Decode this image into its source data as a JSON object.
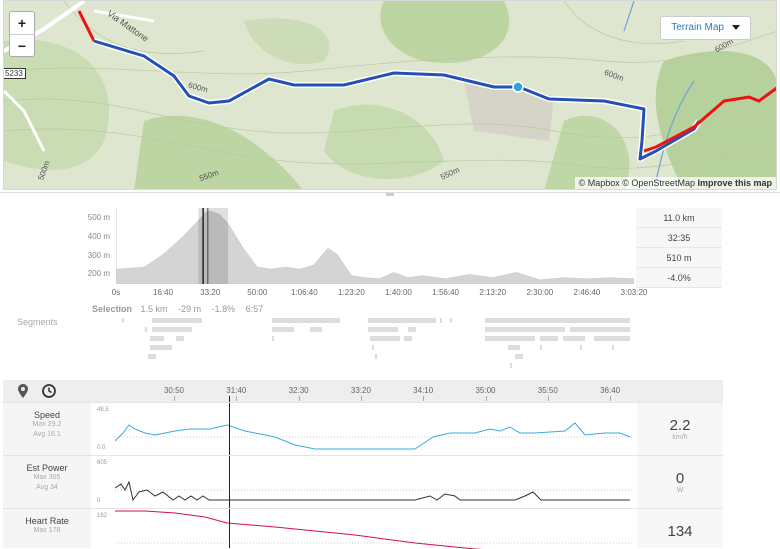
{
  "map": {
    "zoom_in": "+",
    "zoom_out": "−",
    "road_badge": "5233",
    "street_label": "Via Mattone",
    "contour_labels": [
      "600m",
      "600m",
      "550m",
      "550m",
      "500m",
      "600m"
    ],
    "terrain_button": "Terrain Map",
    "attribution_mapbox": "© Mapbox",
    "attribution_osm": "© OpenStreetMap",
    "attribution_improve": "Improve this map"
  },
  "elevation": {
    "y_labels": [
      "500 m",
      "400 m",
      "300 m",
      "200 m"
    ],
    "x_labels": [
      "0s",
      "16:40",
      "33:20",
      "50:00",
      "1:06:40",
      "1:23:20",
      "1:40:00",
      "1:56:40",
      "2:13:20",
      "2:30:00",
      "2:46:40",
      "3:03:20"
    ],
    "stats": [
      "11.0 km",
      "32:35",
      "510 m",
      "-4.0%"
    ],
    "selection_label": "Selection",
    "selection_values": [
      "1.5 km",
      "-29 m",
      "-1.8%",
      "6:57"
    ],
    "segments_label": "Segments"
  },
  "chart_data": {
    "type": "area",
    "xlabel": "",
    "ylabel": "",
    "x_ticks": [
      "0s",
      "16:40",
      "33:20",
      "50:00",
      "1:06:40",
      "1:23:20",
      "1:40:00",
      "1:56:40",
      "2:13:20",
      "2:30:00",
      "2:46:40",
      "3:03:20"
    ],
    "ylim": [
      160,
      520
    ],
    "x_seconds": [
      0,
      600,
      1000,
      1400,
      1700,
      1900,
      2000,
      2200,
      2400,
      2700,
      3000,
      3300,
      3600,
      3900,
      4200,
      4500,
      4700,
      5000,
      5300,
      5600,
      5900,
      6200,
      6500,
      7000,
      7500,
      8000,
      8500,
      9000,
      9500,
      10000,
      10500,
      11000
    ],
    "elevation_m": [
      230,
      240,
      300,
      380,
      450,
      500,
      505,
      490,
      440,
      330,
      240,
      230,
      240,
      230,
      250,
      330,
      300,
      200,
      190,
      185,
      215,
      190,
      200,
      185,
      205,
      190,
      215,
      180,
      190,
      185,
      190,
      185
    ]
  },
  "toolbar": {
    "time_labels": [
      "30:50",
      "31:40",
      "32:30",
      "33:20",
      "34:10",
      "35:00",
      "35:50",
      "36:40"
    ]
  },
  "metrics": [
    {
      "name": "Speed",
      "max": "Max 29.2",
      "avg": "Avg 16.1",
      "axis_top": "48.5",
      "axis_bottom": "0.0",
      "value": "2.2",
      "unit": "km/h",
      "color": "#3aabdd"
    },
    {
      "name": "Est Power",
      "max": "Max 305",
      "avg": "Avg 34",
      "axis_top": "605",
      "axis_bottom": "0",
      "value": "0",
      "unit": "W",
      "color": "#333333"
    },
    {
      "name": "Heart Rate",
      "max": "Max 178",
      "avg": "",
      "axis_top": "182",
      "axis_bottom": "",
      "value": "134",
      "unit": "",
      "color": "#d0114a"
    }
  ]
}
